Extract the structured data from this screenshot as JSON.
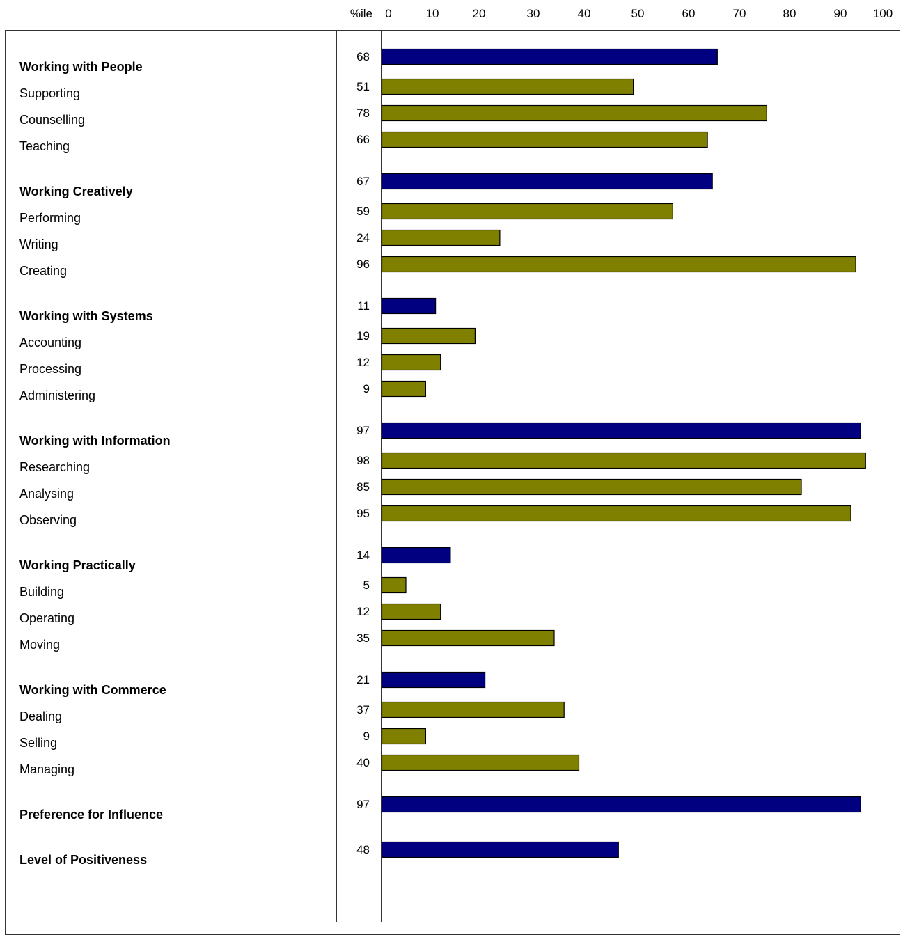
{
  "chart_data": {
    "type": "bar",
    "orientation": "horizontal",
    "axis_header": "%ile",
    "xlim": [
      0,
      100
    ],
    "x_ticks": [
      "0",
      "10",
      "20",
      "30",
      "40",
      "50",
      "60",
      "70",
      "80",
      "90",
      "100"
    ],
    "grid": false,
    "colors": {
      "summary": "#000080",
      "detail": "#808000",
      "border": "#000000"
    },
    "groups": [
      {
        "label": "Working with People",
        "value": 68,
        "items": [
          {
            "label": "Supporting",
            "value": 51
          },
          {
            "label": "Counselling",
            "value": 78
          },
          {
            "label": "Teaching",
            "value": 66
          }
        ]
      },
      {
        "label": "Working Creatively",
        "value": 67,
        "items": [
          {
            "label": "Performing",
            "value": 59
          },
          {
            "label": "Writing",
            "value": 24
          },
          {
            "label": "Creating",
            "value": 96
          }
        ]
      },
      {
        "label": "Working with Systems",
        "value": 11,
        "items": [
          {
            "label": "Accounting",
            "value": 19
          },
          {
            "label": "Processing",
            "value": 12
          },
          {
            "label": "Administering",
            "value": 9
          }
        ]
      },
      {
        "label": "Working with Information",
        "value": 97,
        "items": [
          {
            "label": "Researching",
            "value": 98
          },
          {
            "label": "Analysing",
            "value": 85
          },
          {
            "label": "Observing",
            "value": 95
          }
        ]
      },
      {
        "label": "Working Practically",
        "value": 14,
        "items": [
          {
            "label": "Building",
            "value": 5
          },
          {
            "label": "Operating",
            "value": 12
          },
          {
            "label": "Moving",
            "value": 35
          }
        ]
      },
      {
        "label": "Working with Commerce",
        "value": 21,
        "items": [
          {
            "label": "Dealing",
            "value": 37
          },
          {
            "label": "Selling",
            "value": 9
          },
          {
            "label": "Managing",
            "value": 40
          }
        ]
      },
      {
        "label": "Preference for Influence",
        "value": 97,
        "items": []
      },
      {
        "label": "Level of Positiveness",
        "value": 48,
        "items": []
      }
    ]
  }
}
